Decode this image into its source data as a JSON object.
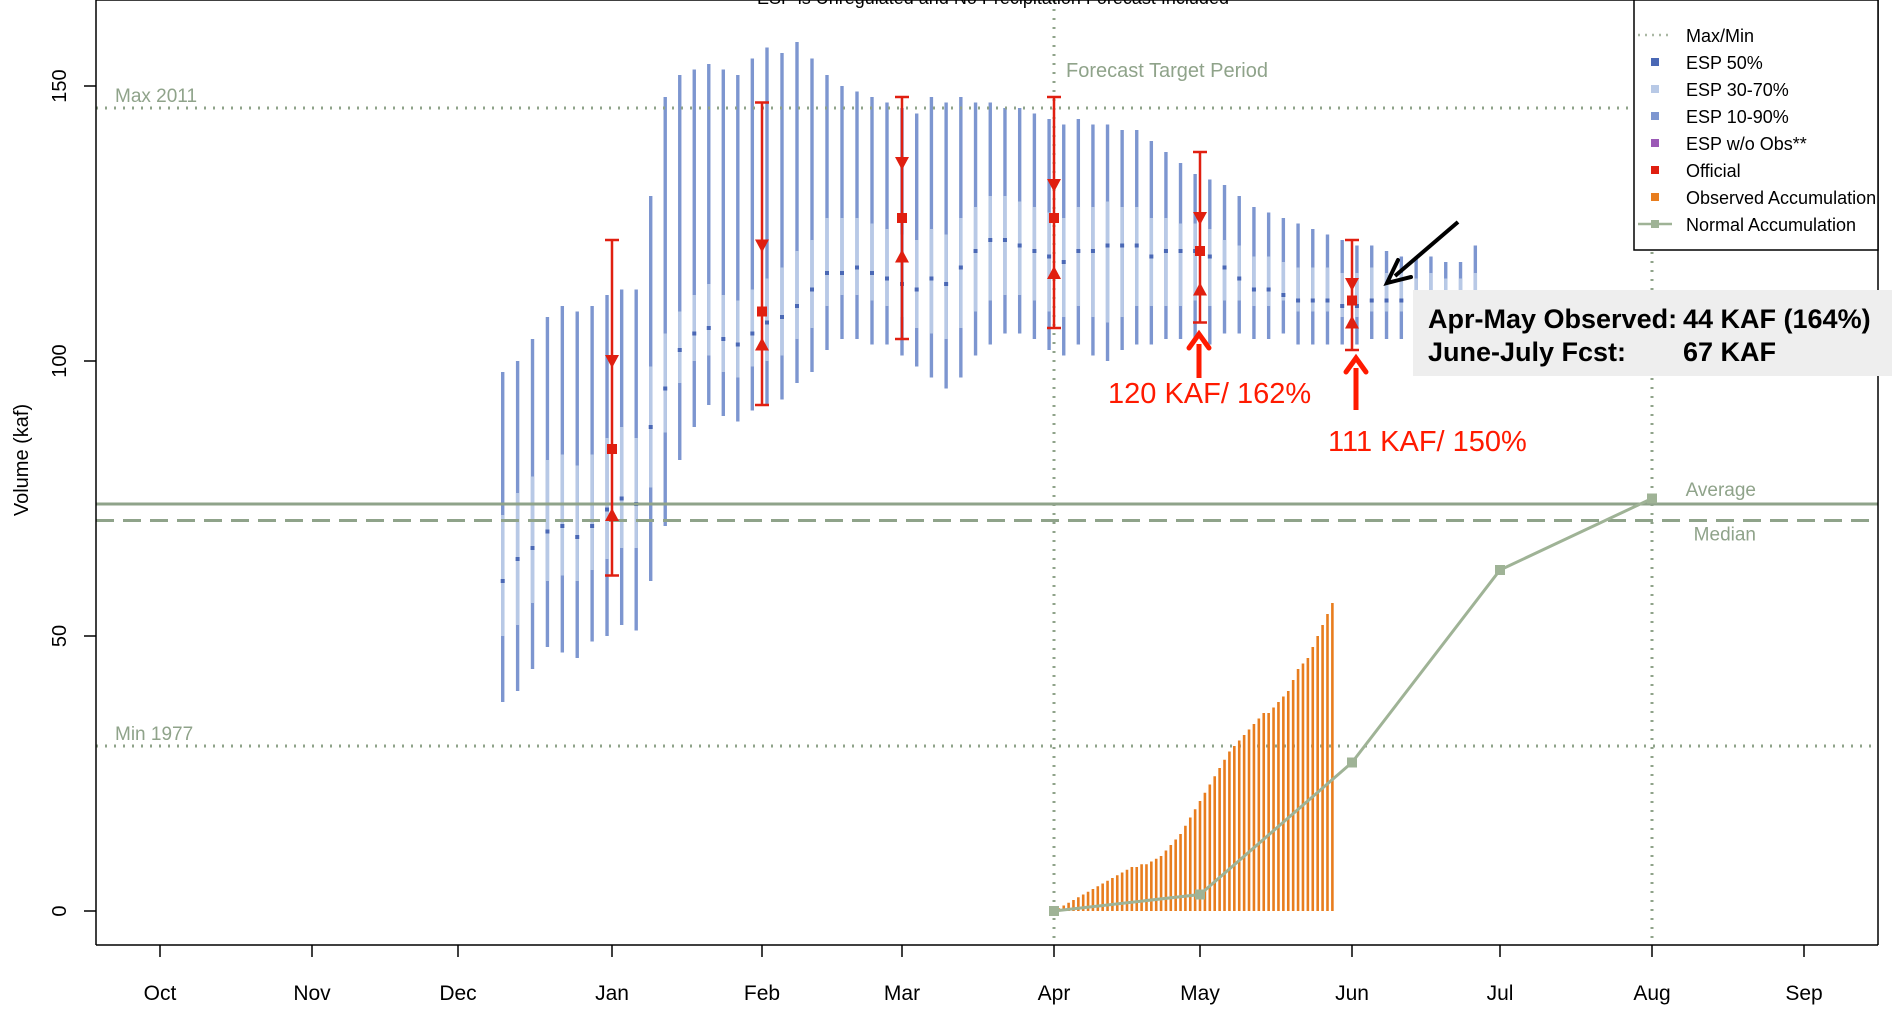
{
  "chart_data": {
    "type": "line",
    "title": "ESP is Unregulated and No Precipitation Forecast Included",
    "ylabel": "Volume (kaf)",
    "xlabel": "",
    "ylim": [
      -7,
      165
    ],
    "yticks": [
      0,
      50,
      100,
      150
    ],
    "months": [
      "Oct",
      "Nov",
      "Dec",
      "Jan",
      "Feb",
      "Mar",
      "Apr",
      "May",
      "Jun",
      "Jul",
      "Aug",
      "Sep"
    ],
    "reference_lines": [
      {
        "label": "Max 2011",
        "value": 146,
        "style": "dotted"
      },
      {
        "label": "Min 1977",
        "value": 30,
        "style": "dotted"
      },
      {
        "label": "Average",
        "value": 74,
        "style": "solid"
      },
      {
        "label": "Median",
        "value": 71,
        "style": "dashed"
      }
    ],
    "forecast_target_label": "Forecast Target Period",
    "forecast_target_start": "Apr",
    "forecast_target_end": "Aug",
    "esp_series": {
      "days": [
        70,
        73,
        76,
        79,
        82,
        85,
        88,
        91,
        94,
        97,
        100,
        103,
        106,
        109,
        112,
        115,
        118,
        121,
        124,
        127,
        130,
        133,
        136,
        139,
        142,
        145,
        148,
        151,
        154,
        157,
        160,
        163,
        166,
        169,
        172,
        175,
        178,
        181,
        184,
        187,
        190,
        193,
        196,
        199,
        202,
        205,
        208,
        211,
        214,
        217,
        220,
        223,
        226,
        229,
        232,
        235,
        238,
        241,
        244,
        247,
        250,
        253,
        256,
        259,
        262,
        265,
        268
      ],
      "p10": [
        38,
        40,
        44,
        48,
        47,
        46,
        49,
        50,
        52,
        51,
        60,
        70,
        82,
        88,
        92,
        90,
        89,
        91,
        92,
        93,
        96,
        98,
        102,
        104,
        104,
        103,
        103,
        101,
        99,
        97,
        95,
        97,
        101,
        103,
        105,
        105,
        104,
        102,
        101,
        103,
        101,
        100,
        102,
        103,
        103,
        104,
        104,
        104,
        103,
        105,
        105,
        104,
        104,
        105,
        103,
        103,
        103,
        103,
        103,
        104,
        104,
        104,
        104,
        104,
        104,
        103,
        104
      ],
      "p30": [
        50,
        52,
        56,
        60,
        61,
        60,
        62,
        64,
        66,
        66,
        77,
        87,
        96,
        100,
        101,
        98,
        97,
        99,
        100,
        101,
        104,
        106,
        110,
        112,
        112,
        111,
        110,
        108,
        106,
        105,
        104,
        106,
        109,
        111,
        112,
        112,
        111,
        109,
        108,
        110,
        108,
        107,
        108,
        110,
        110,
        110,
        110,
        111,
        110,
        111,
        111,
        110,
        110,
        111,
        109,
        109,
        109,
        108,
        108,
        109,
        109,
        109,
        108,
        109,
        108,
        108,
        109
      ],
      "p50": [
        60,
        64,
        66,
        69,
        70,
        68,
        70,
        73,
        75,
        74,
        88,
        95,
        102,
        105,
        106,
        104,
        103,
        105,
        107,
        108,
        110,
        113,
        116,
        116,
        117,
        116,
        115,
        114,
        113,
        115,
        114,
        117,
        120,
        122,
        122,
        121,
        120,
        119,
        118,
        120,
        120,
        121,
        121,
        121,
        119,
        120,
        120,
        120,
        119,
        117,
        115,
        113,
        113,
        112,
        111,
        111,
        111,
        110,
        110,
        111,
        111,
        111,
        110,
        111,
        110,
        110,
        111
      ],
      "p70": [
        72,
        76,
        79,
        82,
        83,
        81,
        83,
        86,
        88,
        86,
        99,
        105,
        109,
        112,
        114,
        112,
        111,
        113,
        115,
        117,
        120,
        122,
        126,
        126,
        126,
        125,
        124,
        123,
        122,
        124,
        123,
        126,
        128,
        130,
        130,
        129,
        128,
        127,
        126,
        128,
        128,
        129,
        128,
        128,
        126,
        126,
        125,
        125,
        124,
        122,
        121,
        119,
        119,
        118,
        117,
        117,
        117,
        116,
        116,
        117,
        116,
        116,
        115,
        116,
        115,
        115,
        116
      ],
      "p90": [
        98,
        100,
        104,
        108,
        110,
        109,
        110,
        112,
        113,
        113,
        130,
        148,
        152,
        153,
        154,
        153,
        152,
        155,
        157,
        156,
        158,
        155,
        152,
        150,
        149,
        148,
        147,
        146,
        145,
        148,
        147,
        148,
        147,
        147,
        146,
        146,
        145,
        144,
        143,
        144,
        143,
        143,
        142,
        142,
        140,
        138,
        136,
        134,
        133,
        132,
        130,
        128,
        127,
        126,
        125,
        124,
        123,
        122,
        121,
        121,
        120,
        119,
        119,
        119,
        118,
        118,
        121
      ]
    },
    "official_forecasts": [
      {
        "date": "Jan",
        "official": 84,
        "upper_tick": 100,
        "lower_tick": 72,
        "max": 122,
        "min": 61
      },
      {
        "date": "Feb",
        "official": 109,
        "upper_tick": 121,
        "lower_tick": 103,
        "max": 147,
        "min": 92
      },
      {
        "date": "Mar",
        "official": 126,
        "upper_tick": 136,
        "lower_tick": 119,
        "max": 148,
        "min": 104
      },
      {
        "date": "Apr",
        "official": 126,
        "upper_tick": 132,
        "lower_tick": 116,
        "max": 148,
        "min": 106
      },
      {
        "date": "May",
        "official": 120,
        "upper_tick": 126,
        "lower_tick": 113,
        "max": 138,
        "min": 107
      },
      {
        "date": "Jun",
        "official": 111,
        "upper_tick": 114,
        "lower_tick": 107,
        "max": 122,
        "min": 102
      }
    ],
    "observed_accumulation": {
      "start_day": 182,
      "end_day": 247,
      "values": [
        0,
        0.5,
        1,
        1.5,
        2,
        2.5,
        3,
        3.5,
        4,
        4.5,
        5,
        5.5,
        6,
        6.5,
        7,
        7.5,
        8,
        8,
        8.5,
        8.5,
        9,
        9.5,
        10,
        11,
        12,
        13,
        14,
        15.5,
        17,
        18.5,
        20,
        21.5,
        23,
        24.5,
        26,
        27.5,
        29,
        30,
        31,
        32,
        33,
        34,
        35,
        36,
        36,
        37,
        38,
        39,
        40,
        42,
        44,
        45,
        46,
        48,
        50,
        52,
        54,
        56
      ]
    },
    "normal_accumulation": {
      "points": [
        {
          "x": "Apr",
          "y": 0
        },
        {
          "x": "May",
          "y": 3
        },
        {
          "x": "Jun",
          "y": 27
        },
        {
          "x": "Jul",
          "y": 62
        },
        {
          "x": "Aug",
          "y": 75
        }
      ]
    },
    "legend": {
      "placement": "top-right",
      "items": [
        {
          "label": "Max/Min",
          "marker": "dotted-line",
          "color": "#aab8a4"
        },
        {
          "label": "ESP 50%",
          "marker": "square",
          "color": "#4a68b5"
        },
        {
          "label": "ESP 30-70%",
          "marker": "square",
          "color": "#b8c9e6"
        },
        {
          "label": "ESP 10-90%",
          "marker": "square",
          "color": "#7d96d0"
        },
        {
          "label": "ESP w/o Obs**",
          "marker": "square",
          "color": "#9b59b6"
        },
        {
          "label": "Official",
          "marker": "square",
          "color": "#e01f10"
        },
        {
          "label": "Observed Accumulation",
          "marker": "square",
          "color": "#e87d1e"
        },
        {
          "label": "Normal Accumulation",
          "marker": "line-square",
          "color": "#9fb396"
        }
      ]
    },
    "colors": {
      "esp10_90": "#7d96d0",
      "esp30_70": "#b8c9e6",
      "esp50": "#4a68b5",
      "official": "#e01f10",
      "observed": "#e87d1e",
      "normal": "#9fb396",
      "reference": "#8fa38a",
      "annotation_red": "#ff1a00"
    }
  },
  "annotations": {
    "may_label": "120 KAF/ 162%",
    "jun_label": "111 KAF/ 150%",
    "info_box": {
      "row1_label": "Apr-May Observed:",
      "row1_value": "44 KAF (164%)",
      "row2_label": "June-July Fcst:",
      "row2_value": "67 KAF"
    }
  }
}
